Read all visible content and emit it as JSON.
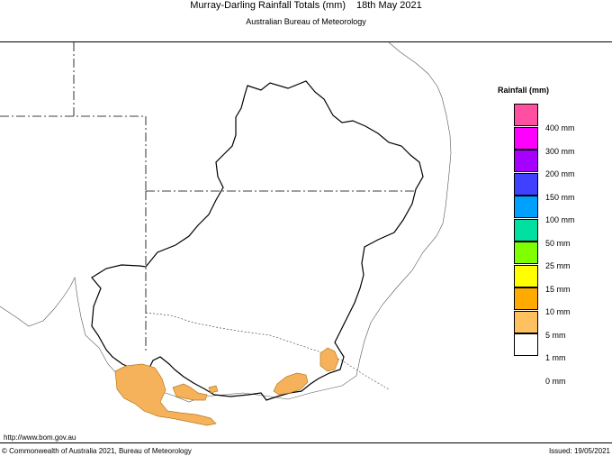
{
  "header": {
    "title": "Murray-Darling Rainfall Totals (mm)",
    "date": "18th May 2021",
    "subtitle": "Australian Bureau of Meteorology"
  },
  "legend": {
    "title": "Rainfall (mm)",
    "items": [
      {
        "label": "400 mm",
        "color": "#ff4fa0"
      },
      {
        "label": "300 mm",
        "color": "#ff00ff"
      },
      {
        "label": "200 mm",
        "color": "#a600ff"
      },
      {
        "label": "150 mm",
        "color": "#4040ff"
      },
      {
        "label": "100 mm",
        "color": "#00a0ff"
      },
      {
        "label": "50 mm",
        "color": "#00e0a0"
      },
      {
        "label": "25 mm",
        "color": "#80ff00"
      },
      {
        "label": "15 mm",
        "color": "#ffff00"
      },
      {
        "label": "10 mm",
        "color": "#ffaa00"
      },
      {
        "label": "5 mm",
        "color": "#ffc060"
      },
      {
        "label": "1 mm",
        "color": "#ffffff"
      },
      {
        "label": "0 mm",
        "color": ""
      }
    ]
  },
  "map": {
    "rain_fill": "#f6b25a",
    "rain_stroke": "#b87a20"
  },
  "footer": {
    "url": "http://www.bom.gov.au",
    "copyright": "© Commonwealth of Australia 2021, Bureau of Meteorology",
    "issued": "Issued: 19/05/2021"
  }
}
